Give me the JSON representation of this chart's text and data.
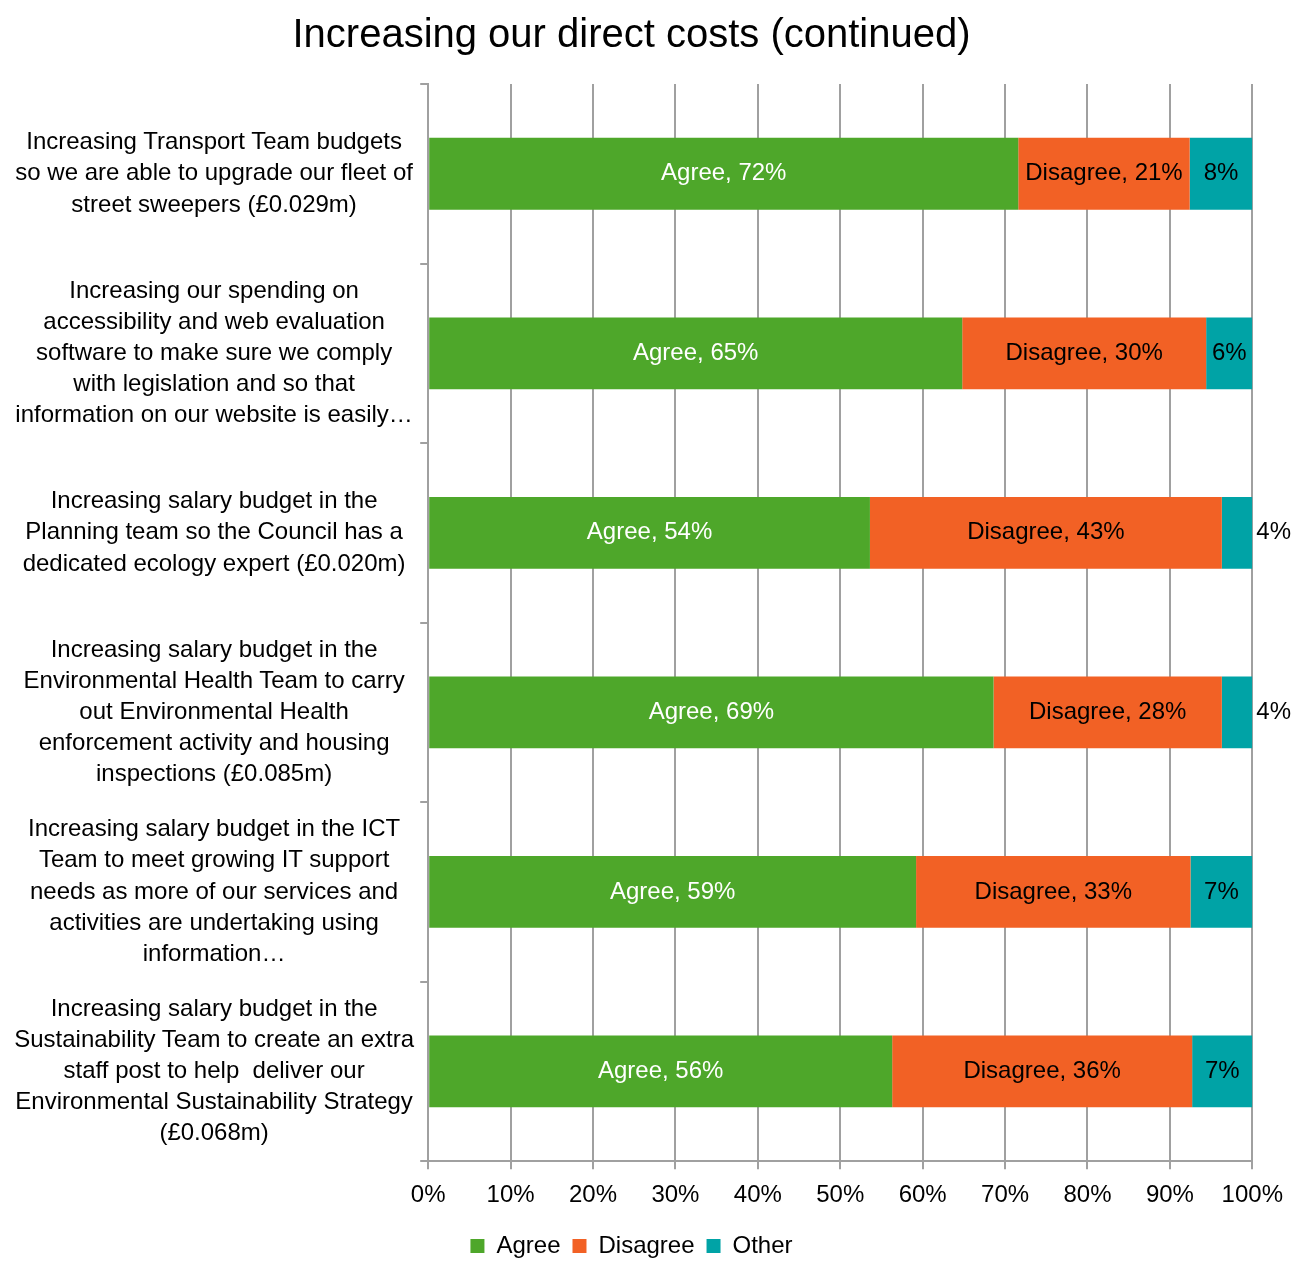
{
  "chart_data": {
    "type": "bar",
    "orientation": "horizontal",
    "stacked": true,
    "title": "Increasing our direct costs (continued)",
    "categories": [
      "Increasing Transport Team budgets so we are able to upgrade our fleet of street sweepers (£0.029m)",
      "Increasing our spending on accessibility and web evaluation software to make sure we comply with legislation and so that information on our website is easily…",
      "Increasing salary budget in the Planning team so the Council has a dedicated ecology expert (£0.020m)",
      "Increasing salary budget in the Environmental Health Team to carry out Environmental Health enforcement activity and housing inspections (£0.085m)",
      "Increasing salary budget in the ICT Team to meet growing IT support needs as more of our services and activities are undertaking using information…",
      "Increasing salary budget in the Sustainability Team to create an extra staff post to help  deliver our Environmental Sustainability Strategy (£0.068m)"
    ],
    "series": [
      {
        "name": "Agree",
        "color": "#4ea72a",
        "values": [
          71.6,
          64.8,
          53.6,
          68.6,
          59.2,
          56.3
        ],
        "value_labels": [
          "Agree, 72%",
          "Agree, 65%",
          "Agree, 54%",
          "Agree, 69%",
          "Agree, 59%",
          "Agree, 56%"
        ]
      },
      {
        "name": "Disagree",
        "color": "#f26125",
        "values": [
          20.8,
          29.6,
          42.7,
          27.7,
          33.3,
          36.4
        ],
        "value_labels": [
          "Disagree, 21%",
          "Disagree, 30%",
          "Disagree, 43%",
          "Disagree, 28%",
          "Disagree, 33%",
          "Disagree, 36%"
        ]
      },
      {
        "name": "Other",
        "color": "#00a3a6",
        "values": [
          7.6,
          5.6,
          3.7,
          3.7,
          7.5,
          7.3
        ],
        "value_labels": [
          "8%",
          "6%",
          "4%",
          "4%",
          "7%",
          "7%"
        ]
      }
    ],
    "xlim": [
      0,
      100
    ],
    "xticks": [
      {
        "value": 0,
        "label": "0%"
      },
      {
        "value": 10,
        "label": "10%"
      },
      {
        "value": 20,
        "label": "20%"
      },
      {
        "value": 30,
        "label": "30%"
      },
      {
        "value": 40,
        "label": "40%"
      },
      {
        "value": 50,
        "label": "50%"
      },
      {
        "value": 60,
        "label": "60%"
      },
      {
        "value": 70,
        "label": "70%"
      },
      {
        "value": 80,
        "label": "80%"
      },
      {
        "value": 90,
        "label": "90%"
      },
      {
        "value": 100,
        "label": "100%"
      }
    ],
    "grid": "x",
    "legend": "bottom"
  }
}
